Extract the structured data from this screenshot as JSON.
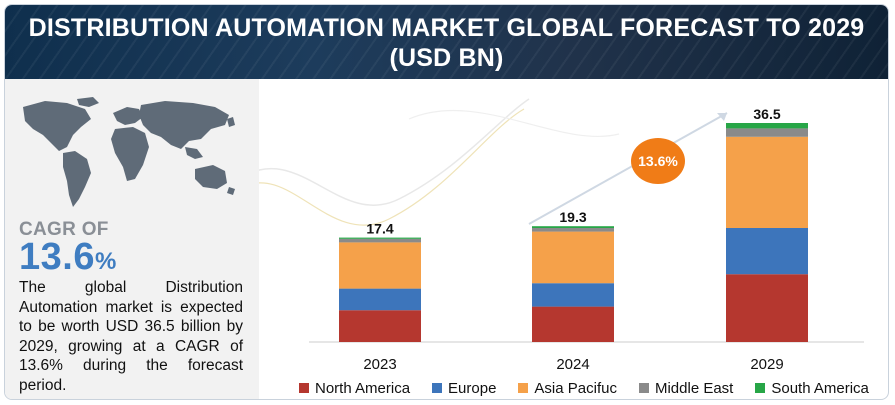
{
  "header": {
    "title_line1": "DISTRIBUTION AUTOMATION MARKET GLOBAL FORECAST TO 2029",
    "title_line2": "(USD BN)"
  },
  "summary": {
    "cagr_label": "CAGR OF",
    "cagr_value": "13.6",
    "cagr_unit": "%",
    "description": "The global Distribution Automation market is expected to be worth USD 36.5 billion by 2029, growing at a CAGR of 13.6% during the forecast period."
  },
  "chart_data": {
    "type": "bar",
    "stacked": true,
    "title": "DISTRIBUTION AUTOMATION MARKET GLOBAL FORECAST TO 2029 (USD BN)",
    "categories": [
      "2023",
      "2024",
      "2029"
    ],
    "totals": [
      17.4,
      19.3,
      36.5
    ],
    "total_labels": [
      "17.4",
      "19.3",
      "36.5"
    ],
    "series": [
      {
        "name": "North America",
        "color": "#b5372f",
        "values": [
          5.3,
          5.9,
          11.3
        ]
      },
      {
        "name": "Europe",
        "color": "#3d75bb",
        "values": [
          3.6,
          3.9,
          7.7
        ]
      },
      {
        "name": "Asia Pacifuc",
        "color": "#f5a14a",
        "values": [
          7.7,
          8.6,
          15.2
        ]
      },
      {
        "name": "Middle East",
        "color": "#8a8a8a",
        "values": [
          0.6,
          0.6,
          1.4
        ]
      },
      {
        "name": "South America",
        "color": "#27a647",
        "values": [
          0.2,
          0.3,
          0.9
        ]
      }
    ],
    "cagr_annotation": "13.6%",
    "ylim": [
      0,
      38
    ],
    "grid": false,
    "legend_position": "bottom"
  }
}
